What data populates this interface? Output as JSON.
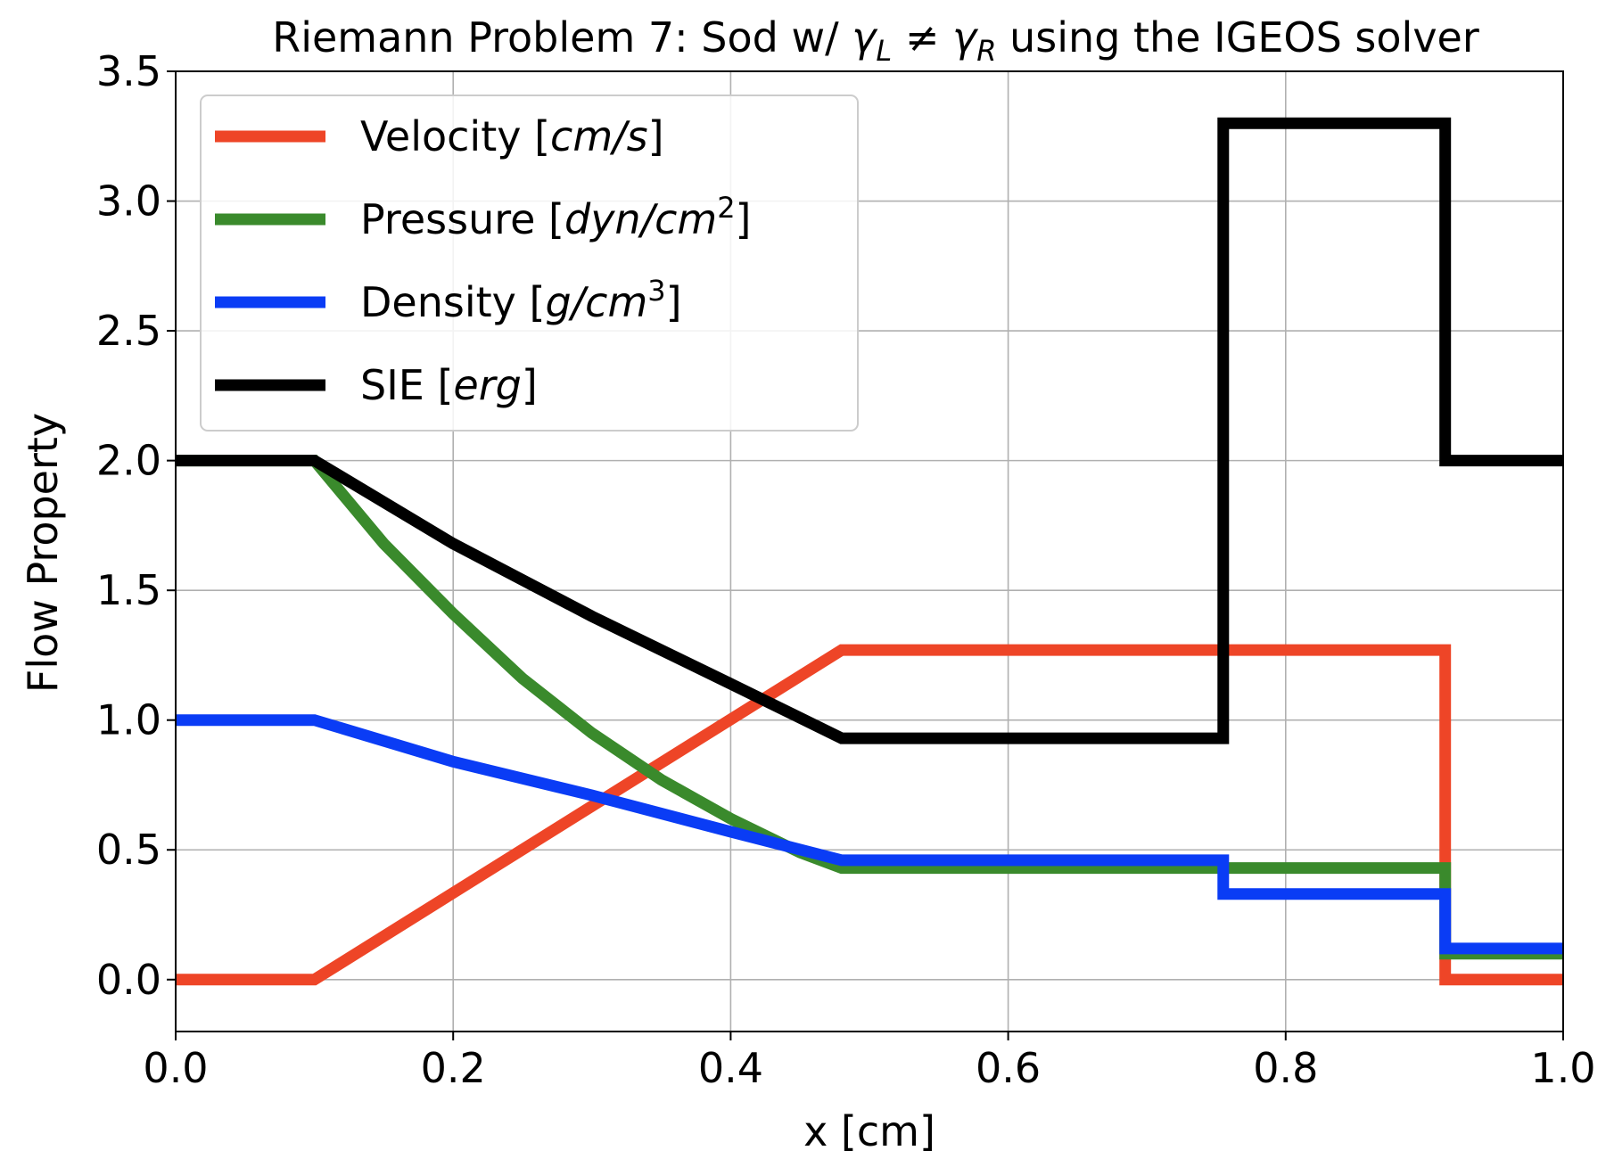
{
  "chart_data": {
    "type": "line",
    "title": "Riemann Problem 7: Sod w/ γL ≠ γR using the IGEOS solver",
    "xlabel": "x [cm]",
    "ylabel": "Flow Property",
    "xlim": [
      0.0,
      1.0
    ],
    "ylim": [
      -0.2,
      3.5
    ],
    "xticks": [
      0.0,
      0.2,
      0.4,
      0.6,
      0.8,
      1.0
    ],
    "xtick_labels": [
      "0.0",
      "0.2",
      "0.4",
      "0.6",
      "0.8",
      "1.0"
    ],
    "yticks": [
      0.0,
      0.5,
      1.0,
      1.5,
      2.0,
      2.5,
      3.0,
      3.5
    ],
    "ytick_labels": [
      "0.0",
      "0.5",
      "1.0",
      "1.5",
      "2.0",
      "2.5",
      "3.0",
      "3.5"
    ],
    "grid": true,
    "legend_position": "upper-left",
    "series": [
      {
        "name": "Velocity [cm/s]",
        "color": "#ee4527",
        "x": [
          0.0,
          0.1,
          0.48,
          0.915,
          0.915,
          1.0
        ],
        "y": [
          0.0,
          0.0,
          1.27,
          1.27,
          0.0,
          0.0
        ]
      },
      {
        "name": "Pressure [dyn/cm2]",
        "color": "#3a8a2c",
        "x": [
          0.0,
          0.1,
          0.15,
          0.2,
          0.25,
          0.3,
          0.35,
          0.4,
          0.45,
          0.48,
          0.915,
          0.915,
          1.0
        ],
        "y": [
          2.0,
          2.0,
          1.68,
          1.41,
          1.16,
          0.95,
          0.77,
          0.62,
          0.49,
          0.43,
          0.43,
          0.1,
          0.1
        ]
      },
      {
        "name": "Density [g/cm3]",
        "color": "#0a3cf5",
        "x": [
          0.0,
          0.1,
          0.2,
          0.3,
          0.4,
          0.48,
          0.755,
          0.755,
          0.915,
          0.915,
          1.0
        ],
        "y": [
          1.0,
          1.0,
          0.84,
          0.71,
          0.57,
          0.46,
          0.46,
          0.33,
          0.33,
          0.12,
          0.12
        ]
      },
      {
        "name": "SIE [erg]",
        "color": "#000000",
        "x": [
          0.0,
          0.1,
          0.2,
          0.3,
          0.4,
          0.48,
          0.755,
          0.755,
          0.915,
          0.915,
          1.0
        ],
        "y": [
          2.0,
          2.0,
          1.68,
          1.4,
          1.14,
          0.93,
          0.93,
          3.3,
          3.3,
          2.0,
          2.0
        ]
      }
    ]
  }
}
